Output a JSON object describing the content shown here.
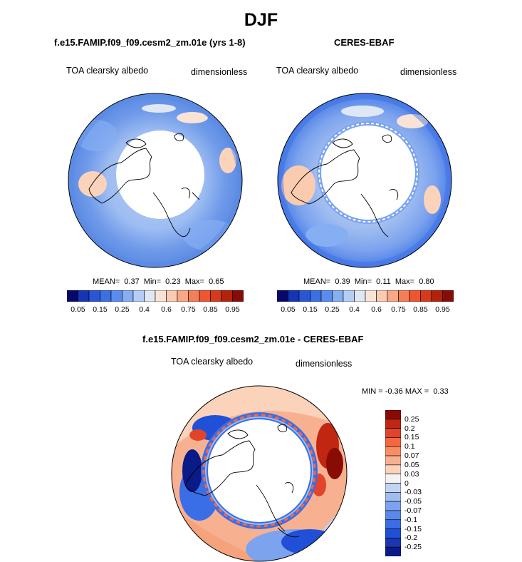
{
  "title": "DJF",
  "panels": [
    {
      "title": "f.e15.FAMIP.f09_f09.cesm2_zm.01e (yrs 1-8)",
      "variable": "TOA clearsky albedo",
      "units": "dimensionless",
      "stats": {
        "mean_label": "MEAN=",
        "mean": "0.37",
        "min_label": "Min=",
        "min": "0.23",
        "max_label": "Max=",
        "max": "0.65"
      }
    },
    {
      "title": "CERES-EBAF",
      "variable": "TOA clearsky albedo",
      "units": "dimensionless",
      "stats": {
        "mean_label": "MEAN=",
        "mean": "0.39",
        "min_label": "Min=",
        "min": "0.11",
        "max_label": "Max=",
        "max": "0.80"
      }
    },
    {
      "title": "f.e15.FAMIP.f09_f09.cesm2_zm.01e - CERES-EBAF",
      "variable": "TOA clearsky albedo",
      "units": "dimensionless",
      "stats": {
        "min_label": "MIN =",
        "min": "-0.36",
        "max_label": "MAX =",
        "max": "0.33"
      }
    }
  ],
  "colorbar_abs": {
    "colors": [
      "#08086b",
      "#1535b5",
      "#2a55d4",
      "#3b6fe3",
      "#5a8ced",
      "#86aef2",
      "#b5cdf5",
      "#dfe7f5",
      "#f9e3d6",
      "#fbcbb0",
      "#f9a784",
      "#f57e58",
      "#ee5630",
      "#d63a1a",
      "#b5220c",
      "#880c05"
    ],
    "tick_labels": [
      "0.05",
      "0.15",
      "0.25",
      "0.4",
      "0.6",
      "0.75",
      "0.85",
      "0.95"
    ]
  },
  "colorbar_diff": {
    "colors": [
      "#880c05",
      "#c02612",
      "#e2442b",
      "#f4683f",
      "#f68e64",
      "#f8b190",
      "#fbd3bb",
      "#f3f3f3",
      "#c3d4f1",
      "#a0bdf0",
      "#7ca3ee",
      "#5a89ea",
      "#3a6ee6",
      "#2050d8",
      "#1a36b0",
      "#0a1a88"
    ],
    "tick_labels": [
      "0.25",
      "0.2",
      "0.15",
      "0.1",
      "0.07",
      "0.05",
      "0.03",
      "0",
      "-0.03",
      "-0.05",
      "-0.07",
      "-0.1",
      "-0.15",
      "-0.2",
      "-0.25"
    ]
  }
}
